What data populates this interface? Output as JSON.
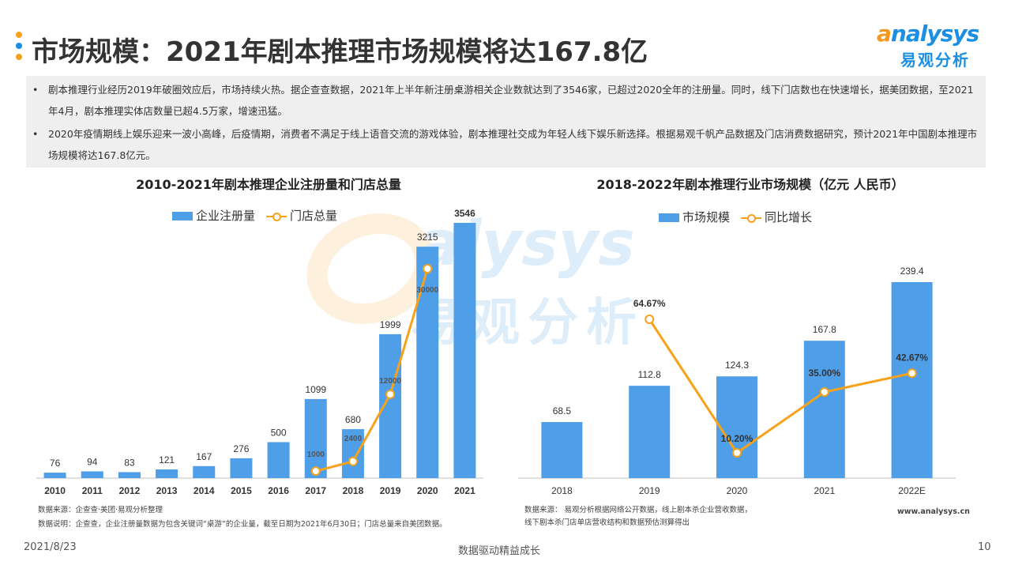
{
  "header": {
    "title": "市场规模：2021年剧本推理市场规模将达167.8亿",
    "logo_en_first": "a",
    "logo_en_rest": "nalysys",
    "logo_cn": "易观分析"
  },
  "summary": {
    "bullets": [
      "剧本推理行业经历2019年破圈效应后，市场持续火热。据企查查数据，2021年上半年新注册桌游相关企业数就达到了3546家，已超过2020全年的注册量。同时，线下门店数也在快速增长，据美团数据，至2021年4月，剧本推理实体店数量已超4.5万家，增速迅猛。",
      "2020年疫情期线上娱乐迎来一波小高峰，后疫情期，消费者不满足于线上语音交流的游戏体验，剧本推理社交成为年轻人线下娱乐新选择。根据易观千帆产品数据及门店消费数据研究，预计2021年中国剧本推理市场规模将达167.8亿元。"
    ],
    "bullet_symbol": "•"
  },
  "chart_data": [
    {
      "type": "bar",
      "title": "2010-2021年剧本推理企业注册量和门店总量",
      "categories": [
        "2010",
        "2011",
        "2012",
        "2013",
        "2014",
        "2015",
        "2016",
        "2017",
        "2018",
        "2019",
        "2020",
        "2021"
      ],
      "series": [
        {
          "name": "企业注册量",
          "type": "bar",
          "values": [
            76,
            94,
            83,
            121,
            167,
            276,
            500,
            1099,
            680,
            1999,
            3215,
            3546
          ]
        },
        {
          "name": "门店总量",
          "type": "line",
          "points": [
            {
              "category": "2017",
              "value": 1000
            },
            {
              "category": "2018",
              "value": 2400
            },
            {
              "category": "2019",
              "value": 12000
            },
            {
              "category": "2020",
              "value": 30000
            }
          ]
        }
      ],
      "legend_position": "top",
      "notes": [
        "数据来源：企查查·美团·易观分析整理",
        "数据说明：企查查，企业注册量数据为包含关键词“桌游”的企业量，截至日期为2021年6月30日；门店总量来自美团数据。"
      ]
    },
    {
      "type": "bar",
      "title": "2018-2022年剧本推理行业市场规模（亿元 人民币）",
      "categories": [
        "2018",
        "2019",
        "2020",
        "2021",
        "2022E"
      ],
      "series": [
        {
          "name": "市场规模",
          "type": "bar",
          "values": [
            68.5,
            112.8,
            124.3,
            167.8,
            239.4
          ]
        },
        {
          "name": "同比增长",
          "type": "line",
          "points": [
            {
              "category": "2019",
              "value": 64.67,
              "label": "64.67%"
            },
            {
              "category": "2020",
              "value": 10.2,
              "label": "10.20%"
            },
            {
              "category": "2021",
              "value": 35.0,
              "label": "35.00%"
            },
            {
              "category": "2022E",
              "value": 42.67,
              "label": "42.67%"
            }
          ]
        }
      ],
      "legend_position": "top",
      "notes": [
        "数据来源： 易观分析根据网络公开数据，线上剧本杀企业营收数据，",
        "线下剧本杀门店单店营收结构和数据预估测算得出"
      ],
      "site": "www.analysys.cn"
    }
  ],
  "footer": {
    "date": "2021/8/23",
    "slogan": "数据驱动精益成长",
    "page": "10"
  },
  "colors": {
    "bar": "#4f9ee8",
    "line": "#f7a21b",
    "dot1": "#f7a21b",
    "dot2": "#1a8fe3",
    "dot3": "#f7a21b"
  }
}
